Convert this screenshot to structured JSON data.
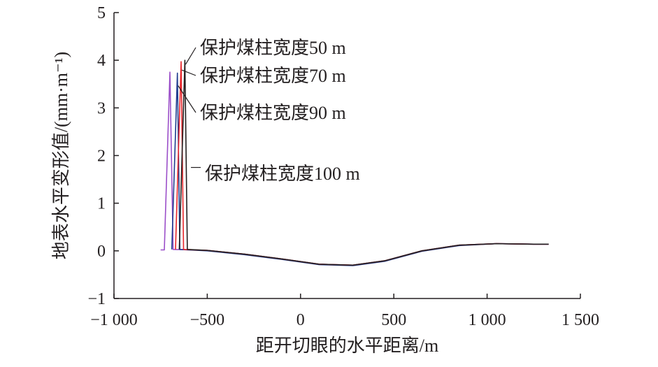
{
  "chart_data": {
    "type": "line",
    "title": "",
    "xlabel": "距开切眼的水平距离/m",
    "ylabel": "地表水平变形值/(mm·m⁻¹)",
    "xlim": [
      -1000,
      1500
    ],
    "ylim": [
      -1,
      5
    ],
    "xticks": [
      -1000,
      -500,
      0,
      500,
      1000,
      1500
    ],
    "xtick_labels": [
      "−1 000",
      "−500",
      "0",
      "500",
      "1 000",
      "1 500"
    ],
    "yticks": [
      -1,
      0,
      1,
      2,
      3,
      4,
      5
    ],
    "ytick_labels": [
      "−1",
      "0",
      "1",
      "2",
      "3",
      "4",
      "5"
    ],
    "grid": false,
    "colors": [
      "#231f20",
      "#e8262b",
      "#1f3e8f",
      "#9b4fc9"
    ],
    "series": [
      {
        "name": "保护煤柱宽度50 m",
        "x": [
          -650,
          -620,
          -607,
          -500,
          -300,
          -100,
          100,
          280,
          450,
          650,
          850,
          1050,
          1250,
          1330
        ],
        "y": [
          0.03,
          4.0,
          0.03,
          0.01,
          -0.07,
          -0.17,
          -0.28,
          -0.3,
          -0.21,
          0.0,
          0.12,
          0.15,
          0.14,
          0.14
        ]
      },
      {
        "name": "保护煤柱宽度70 m",
        "x": [
          -670,
          -640,
          -627,
          -500,
          -300,
          -100,
          100,
          280,
          450,
          650,
          850,
          1050,
          1250,
          1330
        ],
        "y": [
          0.03,
          3.97,
          0.03,
          0.01,
          -0.07,
          -0.17,
          -0.28,
          -0.3,
          -0.21,
          0.0,
          0.12,
          0.15,
          0.14,
          0.14
        ]
      },
      {
        "name": "保护煤柱宽度90 m",
        "x": [
          -690,
          -660,
          -647,
          -500,
          -300,
          -100,
          100,
          280,
          450,
          650,
          850,
          1050,
          1250,
          1330
        ],
        "y": [
          0.03,
          3.73,
          0.03,
          0.0,
          -0.08,
          -0.18,
          -0.29,
          -0.31,
          -0.22,
          -0.01,
          0.11,
          0.15,
          0.14,
          0.14
        ]
      },
      {
        "name": "保护煤柱宽度100 m",
        "x": [
          -750,
          -730,
          -700,
          -683,
          -500,
          -300,
          -100,
          100,
          280,
          450,
          650,
          850,
          1050,
          1250,
          1330
        ],
        "y": [
          0.02,
          0.02,
          3.75,
          0.03,
          0.01,
          -0.07,
          -0.17,
          -0.28,
          -0.3,
          -0.21,
          0.0,
          0.12,
          0.15,
          0.14,
          0.14
        ]
      }
    ]
  }
}
